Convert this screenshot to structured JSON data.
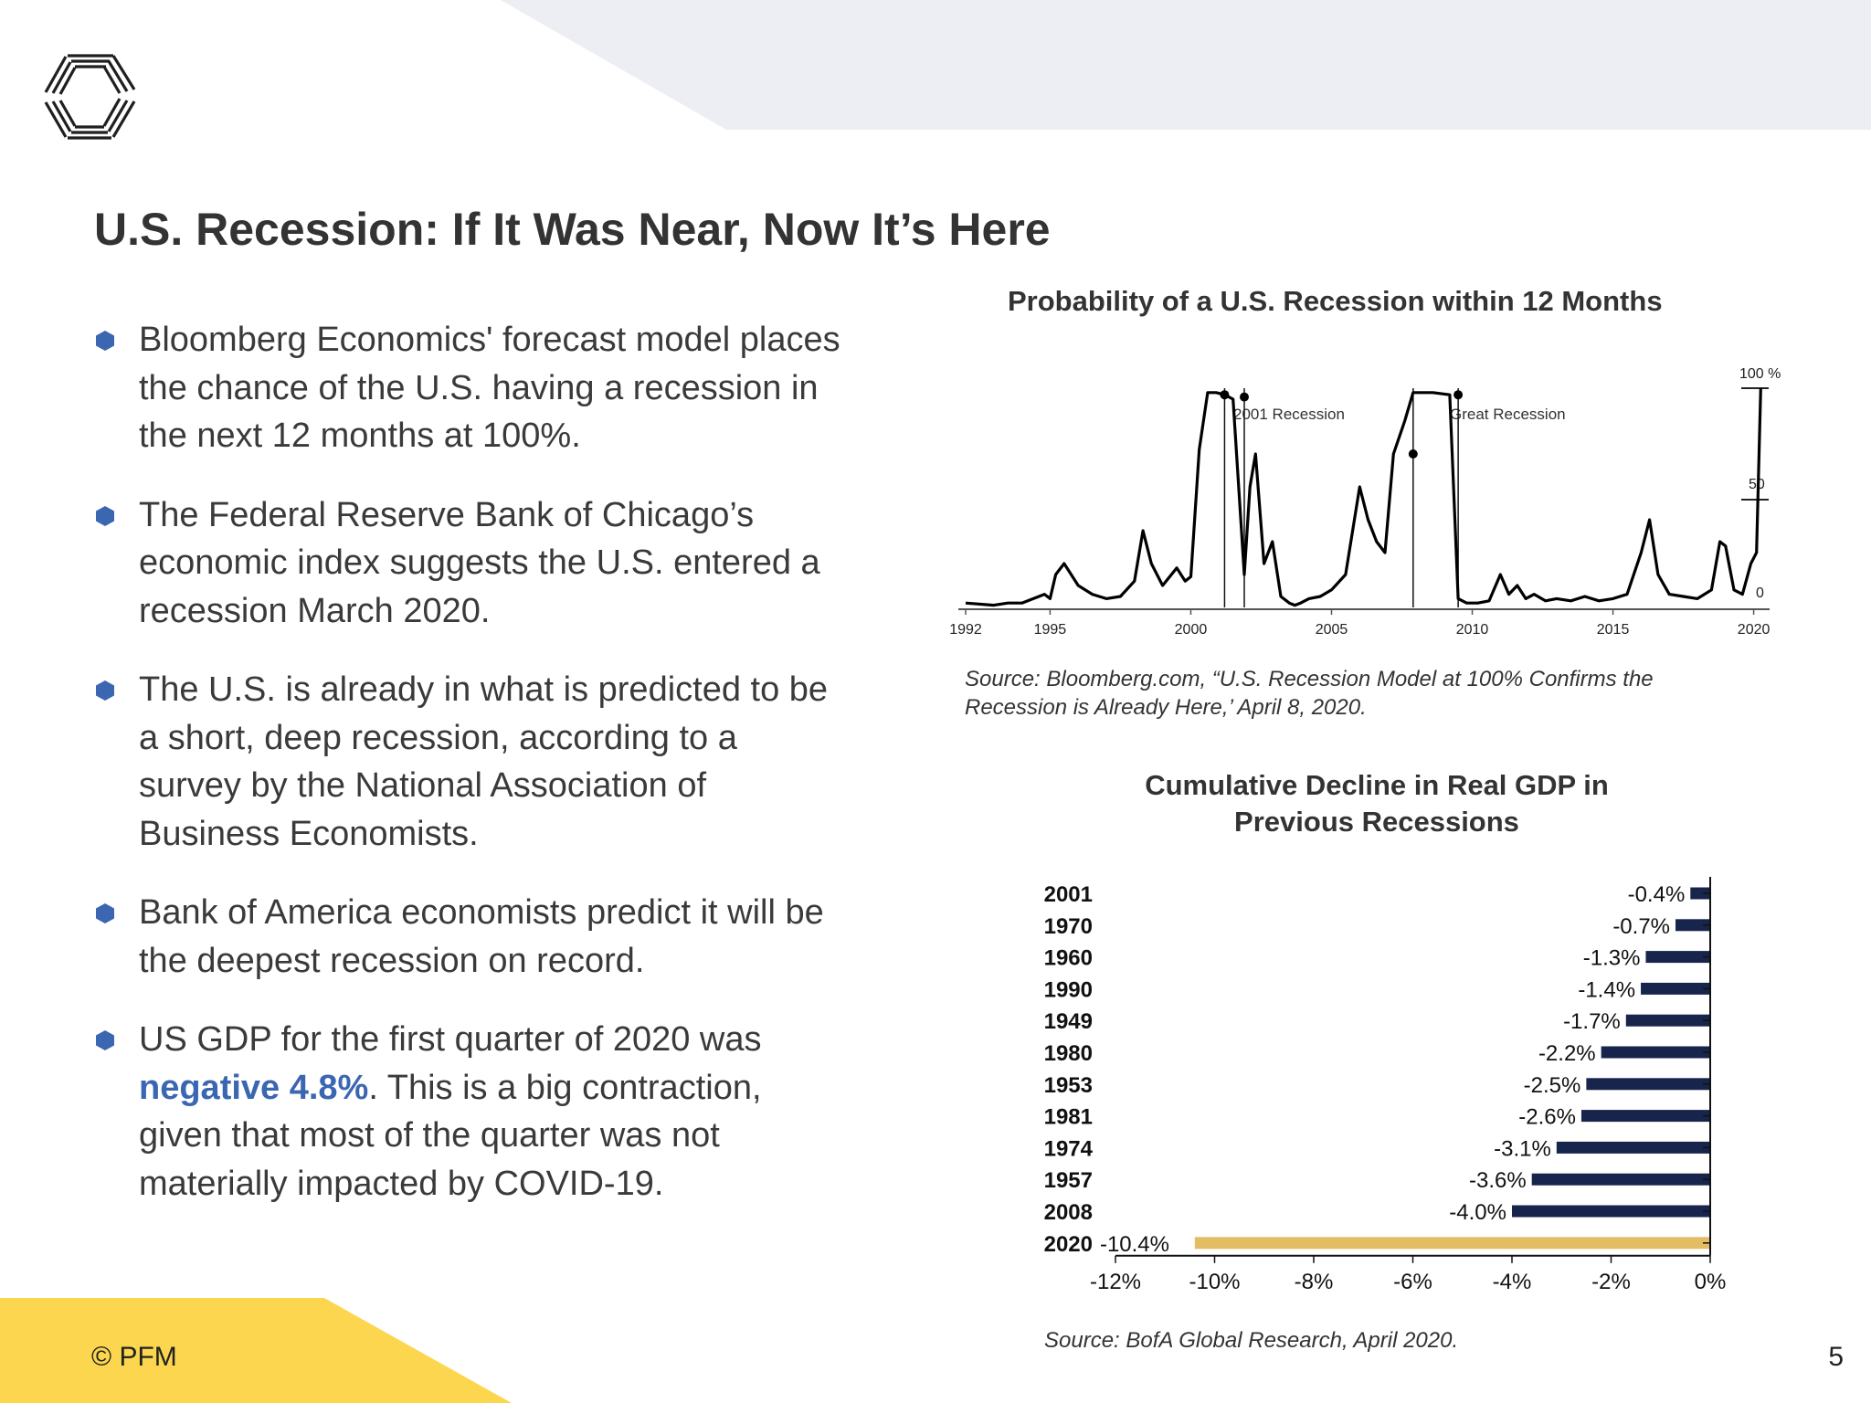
{
  "slide": {
    "title": "U.S. Recession: If It Was Near, Now It’s Here",
    "footer": "© PFM",
    "page_number": "5",
    "accent_color": "#3a66b2",
    "yellow_color": "#fcd64e",
    "band_color": "#eceef4"
  },
  "bullets": [
    {
      "text": "Bloomberg Economics' forecast model places the chance of the U.S. having a recession in the next 12 months at 100%."
    },
    {
      "text": "The Federal Reserve Bank of Chicago’s economic index suggests the U.S. entered a recession March 2020."
    },
    {
      "text": "The U.S. is already in what is predicted to be a short, deep recession, according to a survey by the National Association of Business Economists."
    },
    {
      "text": "Bank of America economists predict it will be the deepest recession on record."
    },
    {
      "before": "US GDP for the first quarter of 2020 was ",
      "highlight": "negative 4.8%",
      "after": ". This is a big contraction, given that most of the quarter was not materially impacted by COVID-19."
    }
  ],
  "chart1": {
    "title": "Probability of a U.S. Recession within 12 Months",
    "source": "Source: Bloomberg.com, “U.S. Recession Model at 100% Confirms the Recession is Already Here,’ April 8, 2020.",
    "annotations": [
      "2001 Recession",
      "Great Recession"
    ],
    "y_label_100": "100 %",
    "y_label_50": "50",
    "y_label_0": "0",
    "x_ticks": [
      "1992",
      "1995",
      "2000",
      "2005",
      "2010",
      "2015",
      "2020"
    ]
  },
  "chart2": {
    "title_line1": "Cumulative Decline in Real GDP in",
    "title_line2": "Previous Recessions",
    "source": "Source: BofA Global Research, April 2020.",
    "x_ticks": [
      "-12%",
      "-10%",
      "-8%",
      "-6%",
      "-4%",
      "-2%",
      "0%"
    ]
  },
  "chart_data": [
    {
      "type": "line",
      "title": "Probability of a U.S. Recession within 12 Months",
      "xlim": [
        1992,
        2020.5
      ],
      "ylim": [
        0,
        100
      ],
      "x_ticks": [
        1992,
        1995,
        2000,
        2005,
        2010,
        2015,
        2020
      ],
      "y_ticks": [
        0,
        50,
        100
      ],
      "grid": false,
      "recession_shading": [
        [
          2001.2,
          2001.9
        ],
        [
          2007.9,
          2009.5
        ]
      ],
      "annotations": [
        "2001 Recession",
        "Great Recession"
      ],
      "series": [
        {
          "x": [
            1992,
            1993,
            1993.5,
            1994,
            1994.8,
            1995,
            1995.2,
            1995.5,
            1996,
            1996.5,
            1997,
            1997.5,
            1998,
            1998.3,
            1998.6,
            1999,
            1999.5,
            1999.8,
            2000,
            2000.3,
            2000.6,
            2000.9,
            2001.2,
            2001.5,
            2001.9,
            2002.1,
            2002.3,
            2002.6,
            2002.9,
            2003.2,
            2003.5,
            2003.7,
            2003.9,
            2004.2,
            2004.6,
            2005,
            2005.5,
            2006,
            2006.3,
            2006.6,
            2006.9,
            2007.2,
            2007.6,
            2007.9,
            2008.2,
            2008.6,
            2009.2,
            2009.5,
            2009.8,
            2010.2,
            2010.6,
            2011,
            2011.3,
            2011.6,
            2011.9,
            2012.2,
            2012.6,
            2013,
            2013.5,
            2014,
            2014.5,
            2015,
            2015.5,
            2016,
            2016.3,
            2016.6,
            2017,
            2017.5,
            2018,
            2018.5,
            2018.8,
            2019,
            2019.3,
            2019.6,
            2019.9,
            2020.1,
            2020.25
          ],
          "y": [
            2,
            1,
            2,
            2,
            6,
            4,
            15,
            20,
            10,
            6,
            4,
            5,
            12,
            35,
            20,
            10,
            18,
            12,
            14,
            72,
            98,
            98,
            97,
            95,
            15,
            55,
            70,
            20,
            30,
            5,
            2,
            1,
            2,
            4,
            5,
            8,
            15,
            55,
            40,
            30,
            25,
            70,
            85,
            98,
            98,
            98,
            97,
            4,
            2,
            2,
            3,
            15,
            6,
            10,
            4,
            6,
            3,
            4,
            3,
            5,
            3,
            4,
            6,
            25,
            40,
            15,
            6,
            5,
            4,
            8,
            30,
            28,
            8,
            6,
            20,
            25,
            100
          ]
        }
      ]
    },
    {
      "type": "bar",
      "orientation": "horizontal",
      "title": "Cumulative Decline in Real GDP in Previous Recessions",
      "categories": [
        "2001",
        "1970",
        "1960",
        "1990",
        "1949",
        "1980",
        "1953",
        "1981",
        "1974",
        "1957",
        "2008",
        "2020"
      ],
      "values": [
        -0.4,
        -0.7,
        -1.3,
        -1.4,
        -1.7,
        -2.2,
        -2.5,
        -2.6,
        -3.1,
        -3.6,
        -4.0,
        -10.4
      ],
      "labels": [
        "-0.4%",
        "-0.7%",
        "-1.3%",
        "-1.4%",
        "-1.7%",
        "-2.2%",
        "-2.5%",
        "-2.6%",
        "-3.1%",
        "-3.6%",
        "-4.0%",
        "-10.4%"
      ],
      "colors": {
        "default": "#17254d",
        "highlight": "#e3bd63"
      },
      "highlight_category": "2020",
      "xlim": [
        -12,
        0
      ],
      "x_ticks": [
        "-12%",
        "-10%",
        "-8%",
        "-6%",
        "-4%",
        "-2%",
        "0%"
      ]
    }
  ]
}
